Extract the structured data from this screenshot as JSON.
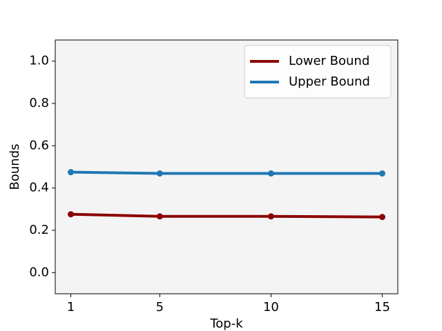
{
  "chart_data": {
    "type": "line",
    "x": [
      1,
      5,
      10,
      15
    ],
    "series": [
      {
        "name": "Lower Bound",
        "color": "#8b0000",
        "values": [
          0.276,
          0.266,
          0.266,
          0.263
        ]
      },
      {
        "name": "Upper Bound",
        "color": "#1f77b4",
        "values": [
          0.475,
          0.469,
          0.469,
          0.469
        ]
      }
    ],
    "xlabel": "Top-k",
    "ylabel": "Bounds",
    "xlim": [
      0.3,
      15.7
    ],
    "ylim": [
      -0.1,
      1.1
    ],
    "xticks": [
      1,
      5,
      10,
      15
    ],
    "yticks": [
      {
        "value": 0,
        "label": "0.0"
      },
      {
        "value": 0.2,
        "label": "0.2"
      },
      {
        "value": 0.4,
        "label": "0.4"
      },
      {
        "value": 0.6,
        "label": "0.6"
      },
      {
        "value": 0.8,
        "label": "0.8"
      },
      {
        "value": 1,
        "label": "1.0"
      }
    ],
    "legend": "upper right",
    "background": "#f4f4f4"
  }
}
